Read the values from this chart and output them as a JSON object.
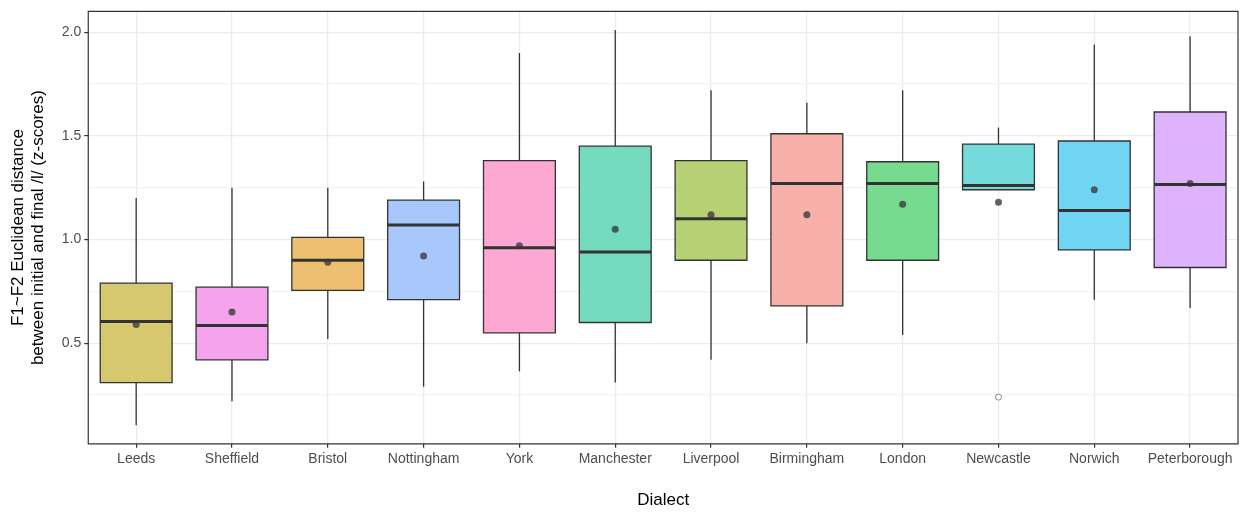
{
  "chart_data": {
    "type": "box",
    "xlabel": "Dialect",
    "ylabel": "F1~F2 Euclidean distance\nbetween initial and final /l/ (z-scores)",
    "categories": [
      "Leeds",
      "Sheffield",
      "Bristol",
      "Nottingham",
      "York",
      "Manchester",
      "Liverpool",
      "Birmingham",
      "London",
      "Newcastle",
      "Norwich",
      "Peterborough"
    ],
    "colors": [
      "#d5c86f",
      "#f5a3ec",
      "#ecc070",
      "#a8c8fc",
      "#fda8d3",
      "#74dbbf",
      "#b6d174",
      "#f8b0ab",
      "#76da8f",
      "#74dadc",
      "#6fd5f3",
      "#deb3fb"
    ],
    "boxes": [
      {
        "low": 0.105,
        "q1": 0.31,
        "median": 0.605,
        "q3": 0.79,
        "high": 1.2,
        "mean": 0.59
      },
      {
        "low": 0.22,
        "q1": 0.42,
        "median": 0.585,
        "q3": 0.77,
        "high": 1.25,
        "mean": 0.65
      },
      {
        "low": 0.52,
        "q1": 0.755,
        "median": 0.9,
        "q3": 1.01,
        "high": 1.25,
        "mean": 0.89
      },
      {
        "low": 0.29,
        "q1": 0.71,
        "median": 1.07,
        "q3": 1.19,
        "high": 1.28,
        "mean": 0.92
      },
      {
        "low": 0.365,
        "q1": 0.55,
        "median": 0.96,
        "q3": 1.38,
        "high": 1.9,
        "mean": 0.97
      },
      {
        "low": 0.31,
        "q1": 0.6,
        "median": 0.94,
        "q3": 1.45,
        "high": 2.01,
        "mean": 1.05
      },
      {
        "low": 0.42,
        "q1": 0.9,
        "median": 1.1,
        "q3": 1.38,
        "high": 1.72,
        "mean": 1.12
      },
      {
        "low": 0.5,
        "q1": 0.68,
        "median": 1.27,
        "q3": 1.51,
        "high": 1.66,
        "mean": 1.12
      },
      {
        "low": 0.54,
        "q1": 0.9,
        "median": 1.27,
        "q3": 1.375,
        "high": 1.72,
        "mean": 1.17
      },
      {
        "low": 1.24,
        "q1": 1.24,
        "median": 1.26,
        "q3": 1.46,
        "high": 1.54,
        "mean": 1.18,
        "outliers": [
          0.24
        ]
      },
      {
        "low": 0.71,
        "q1": 0.95,
        "median": 1.14,
        "q3": 1.475,
        "high": 1.94,
        "mean": 1.24
      },
      {
        "low": 0.67,
        "q1": 0.865,
        "median": 1.265,
        "q3": 1.615,
        "high": 1.98,
        "mean": 1.27
      }
    ],
    "ylim": [
      0.015,
      2.1
    ],
    "yticks": [
      {
        "value": 0.25,
        "label": null
      },
      {
        "value": 0.5,
        "label": "0.5"
      },
      {
        "value": 0.75,
        "label": null
      },
      {
        "value": 1,
        "label": "1.0"
      },
      {
        "value": 1.25,
        "label": null
      },
      {
        "value": 1.5,
        "label": "1.5"
      },
      {
        "value": 1.75,
        "label": null
      },
      {
        "value": 2,
        "label": "2.0"
      }
    ],
    "grid": true
  }
}
